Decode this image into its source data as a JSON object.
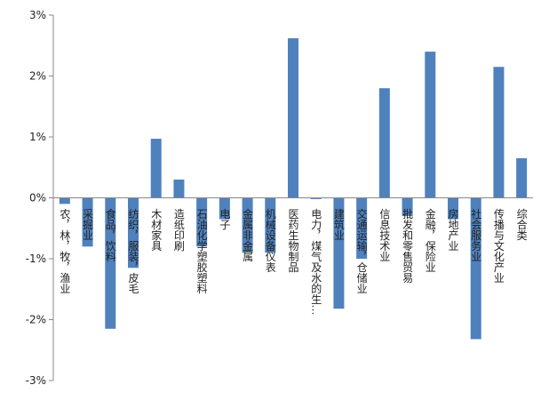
{
  "chart_data": {
    "type": "bar",
    "categories": [
      "农，林，牧，渔业",
      "采掘业",
      "食品，饮料",
      "纺织，服装，皮毛",
      "木材家具",
      "造纸印刷",
      "石油化学塑胶塑料",
      "电子",
      "金属非金属",
      "机械设备仪表",
      "医药生物制品",
      "电力，煤气及水的生…",
      "建筑业",
      "交通运输，仓储业",
      "信息技术业",
      "批发和零售贸易",
      "金融，保险业",
      "房地产业",
      "社会服务业",
      "传播与文化产业",
      "综合类"
    ],
    "values": [
      -0.1,
      -0.8,
      -2.15,
      -1.15,
      0.97,
      0.3,
      -0.8,
      -0.35,
      -0.9,
      -0.9,
      2.62,
      -0.02,
      -1.82,
      -1.0,
      1.8,
      -0.3,
      2.4,
      -0.35,
      -2.32,
      2.15,
      0.65
    ],
    "color": "#4f81bd",
    "ylim": [
      -3,
      3
    ],
    "yticks": [
      {
        "value": -3,
        "label": "-3%"
      },
      {
        "value": -2,
        "label": "-2%"
      },
      {
        "value": -1,
        "label": "-1%"
      },
      {
        "value": 0,
        "label": "0%"
      },
      {
        "value": 1,
        "label": "1%"
      },
      {
        "value": 2,
        "label": "2%"
      },
      {
        "value": 3,
        "label": "3%"
      }
    ]
  }
}
